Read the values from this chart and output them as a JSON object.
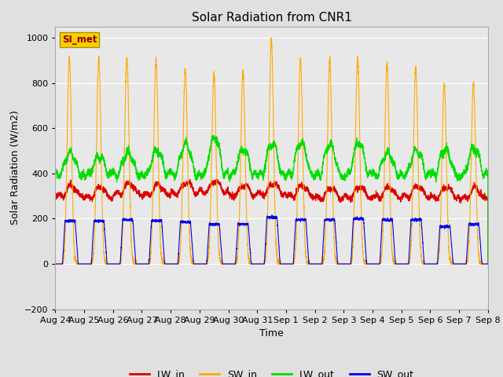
{
  "title": "Solar Radiation from CNR1",
  "xlabel": "Time",
  "ylabel": "Solar Radiation (W/m2)",
  "ylim": [
    -200,
    1050
  ],
  "yticks": [
    -200,
    0,
    200,
    400,
    600,
    800,
    1000
  ],
  "xtick_labels": [
    "Aug 24",
    "Aug 25",
    "Aug 26",
    "Aug 27",
    "Aug 28",
    "Aug 29",
    "Aug 30",
    "Aug 31",
    "Sep 1",
    "Sep 2",
    "Sep 3",
    "Sep 4",
    "Sep 5",
    "Sep 6",
    "Sep 7",
    "Sep 8"
  ],
  "outer_bg_color": "#e0e0e0",
  "plot_bg_color": "#e8e8e8",
  "series_colors": {
    "LW_in": "#dd0000",
    "SW_in": "#ffaa00",
    "LW_out": "#00dd00",
    "SW_out": "#0000ee"
  },
  "legend_label": "SI_met",
  "legend_box_facecolor": "#ffcc00",
  "legend_box_edgecolor": "#999900",
  "legend_text_color": "#880000",
  "n_days": 15,
  "sw_in_peaks": [
    910,
    910,
    910,
    900,
    860,
    840,
    850,
    990,
    910,
    900,
    910,
    880,
    870,
    800,
    800
  ],
  "sw_out_peaks": [
    190,
    190,
    195,
    190,
    185,
    175,
    175,
    205,
    195,
    195,
    200,
    195,
    195,
    165,
    175
  ],
  "lw_out_peaks": [
    490,
    475,
    490,
    500,
    530,
    555,
    505,
    530,
    535,
    525,
    535,
    490,
    500,
    505,
    510
  ],
  "lw_in_bases": [
    300,
    295,
    310,
    305,
    315,
    320,
    305,
    310,
    300,
    290,
    295,
    295,
    300,
    295,
    290
  ]
}
